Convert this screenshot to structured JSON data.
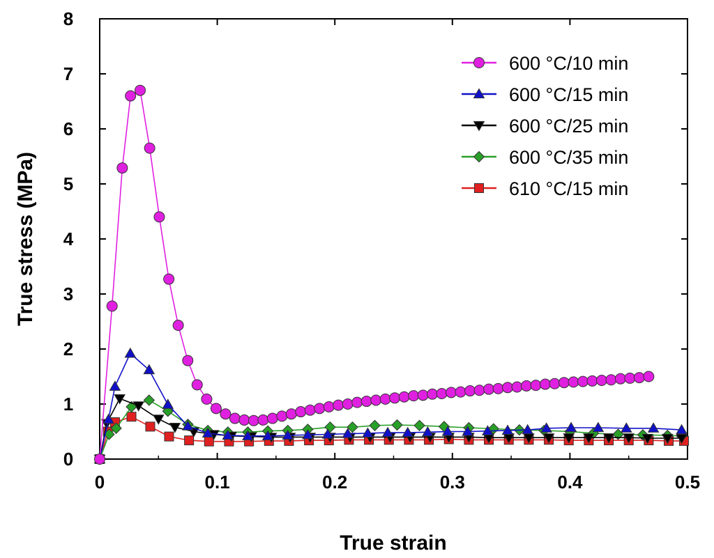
{
  "chart_data": {
    "type": "line",
    "title": "",
    "xlabel": "True strain",
    "ylabel": "True stress (MPa)",
    "xlim": [
      0,
      0.5
    ],
    "ylim": [
      0,
      8
    ],
    "x_ticks": [
      0,
      0.1,
      0.2,
      0.3,
      0.4,
      0.5
    ],
    "x_tick_labels": [
      "0",
      "0.1",
      "0.2",
      "0.3",
      "0.4",
      "0.5"
    ],
    "y_ticks": [
      0,
      1,
      2,
      3,
      4,
      5,
      6,
      7,
      8
    ],
    "y_tick_labels": [
      "0",
      "1",
      "2",
      "3",
      "4",
      "5",
      "6",
      "7",
      "8"
    ],
    "grid": false,
    "legend_position": "top-right",
    "series": [
      {
        "name": "600 °C/10 min",
        "color": "#e020e0",
        "marker": "circle",
        "points": [
          [
            0,
            0
          ],
          [
            0.0105,
            2.78
          ],
          [
            0.0192,
            5.29
          ],
          [
            0.0262,
            6.6
          ],
          [
            0.0344,
            6.7
          ],
          [
            0.0425,
            5.65
          ],
          [
            0.0507,
            4.4
          ],
          [
            0.0588,
            3.27
          ],
          [
            0.0668,
            2.43
          ],
          [
            0.0749,
            1.79
          ],
          [
            0.0829,
            1.35
          ],
          [
            0.091,
            1.09
          ],
          [
            0.099,
            0.92
          ],
          [
            0.107,
            0.82
          ],
          [
            0.115,
            0.74
          ],
          [
            0.123,
            0.71
          ],
          [
            0.131,
            0.7
          ],
          [
            0.139,
            0.71
          ],
          [
            0.147,
            0.74
          ],
          [
            0.155,
            0.78
          ],
          [
            0.163,
            0.82
          ],
          [
            0.171,
            0.86
          ],
          [
            0.179,
            0.89
          ],
          [
            0.187,
            0.92
          ],
          [
            0.195,
            0.95
          ],
          [
            0.203,
            0.98
          ],
          [
            0.211,
            1.0
          ],
          [
            0.219,
            1.03
          ],
          [
            0.227,
            1.05
          ],
          [
            0.235,
            1.07
          ],
          [
            0.243,
            1.09
          ],
          [
            0.251,
            1.11
          ],
          [
            0.259,
            1.13
          ],
          [
            0.267,
            1.15
          ],
          [
            0.275,
            1.16
          ],
          [
            0.283,
            1.18
          ],
          [
            0.291,
            1.19
          ],
          [
            0.299,
            1.21
          ],
          [
            0.307,
            1.22
          ],
          [
            0.315,
            1.24
          ],
          [
            0.323,
            1.25
          ],
          [
            0.331,
            1.27
          ],
          [
            0.339,
            1.28
          ],
          [
            0.347,
            1.3
          ],
          [
            0.355,
            1.31
          ],
          [
            0.363,
            1.33
          ],
          [
            0.371,
            1.34
          ],
          [
            0.379,
            1.36
          ],
          [
            0.387,
            1.37
          ],
          [
            0.395,
            1.39
          ],
          [
            0.403,
            1.4
          ],
          [
            0.411,
            1.41
          ],
          [
            0.419,
            1.42
          ],
          [
            0.427,
            1.43
          ],
          [
            0.435,
            1.44
          ],
          [
            0.443,
            1.46
          ],
          [
            0.451,
            1.47
          ],
          [
            0.459,
            1.48
          ],
          [
            0.467,
            1.5
          ]
        ]
      },
      {
        "name": "600 °C/15 min",
        "color": "#1010c8",
        "marker": "triangle-up",
        "points": [
          [
            0,
            0
          ],
          [
            0.0075,
            0.72
          ],
          [
            0.013,
            1.32
          ],
          [
            0.026,
            1.92
          ],
          [
            0.042,
            1.62
          ],
          [
            0.058,
            0.99
          ],
          [
            0.075,
            0.6
          ],
          [
            0.092,
            0.47
          ],
          [
            0.109,
            0.43
          ],
          [
            0.126,
            0.42
          ],
          [
            0.143,
            0.42
          ],
          [
            0.16,
            0.43
          ],
          [
            0.177,
            0.44
          ],
          [
            0.194,
            0.45
          ],
          [
            0.211,
            0.46
          ],
          [
            0.228,
            0.47
          ],
          [
            0.245,
            0.48
          ],
          [
            0.262,
            0.48
          ],
          [
            0.279,
            0.49
          ],
          [
            0.296,
            0.5
          ],
          [
            0.313,
            0.5
          ],
          [
            0.33,
            0.51
          ],
          [
            0.347,
            0.52
          ],
          [
            0.364,
            0.53
          ],
          [
            0.38,
            0.56
          ],
          [
            0.401,
            0.57
          ],
          [
            0.424,
            0.57
          ],
          [
            0.448,
            0.56
          ],
          [
            0.471,
            0.56
          ],
          [
            0.495,
            0.53
          ]
        ]
      },
      {
        "name": "600 °C/25 min",
        "color": "#000000",
        "marker": "triangle-down",
        "points": [
          [
            0,
            0
          ],
          [
            0.006,
            0.65
          ],
          [
            0.017,
            1.1
          ],
          [
            0.033,
            0.97
          ],
          [
            0.05,
            0.73
          ],
          [
            0.064,
            0.58
          ],
          [
            0.08,
            0.5
          ],
          [
            0.097,
            0.45
          ],
          [
            0.112,
            0.42
          ],
          [
            0.129,
            0.41
          ],
          [
            0.146,
            0.4
          ],
          [
            0.162,
            0.4
          ],
          [
            0.179,
            0.4
          ],
          [
            0.196,
            0.4
          ],
          [
            0.213,
            0.4
          ],
          [
            0.23,
            0.4
          ],
          [
            0.247,
            0.4
          ],
          [
            0.264,
            0.4
          ],
          [
            0.281,
            0.4
          ],
          [
            0.297,
            0.4
          ],
          [
            0.314,
            0.4
          ],
          [
            0.331,
            0.39
          ],
          [
            0.348,
            0.39
          ],
          [
            0.365,
            0.39
          ],
          [
            0.382,
            0.39
          ],
          [
            0.399,
            0.39
          ],
          [
            0.416,
            0.39
          ],
          [
            0.433,
            0.39
          ],
          [
            0.45,
            0.39
          ],
          [
            0.466,
            0.38
          ],
          [
            0.483,
            0.38
          ],
          [
            0.495,
            0.38
          ]
        ]
      },
      {
        "name": "600 °C/35 min",
        "color": "#28a028",
        "marker": "diamond",
        "points": [
          [
            0,
            0
          ],
          [
            0.008,
            0.45
          ],
          [
            0.014,
            0.56
          ],
          [
            0.027,
            0.95
          ],
          [
            0.042,
            1.07
          ],
          [
            0.058,
            0.87
          ],
          [
            0.075,
            0.63
          ],
          [
            0.092,
            0.52
          ],
          [
            0.109,
            0.49
          ],
          [
            0.126,
            0.49
          ],
          [
            0.143,
            0.51
          ],
          [
            0.16,
            0.52
          ],
          [
            0.177,
            0.54
          ],
          [
            0.196,
            0.58
          ],
          [
            0.215,
            0.58
          ],
          [
            0.234,
            0.61
          ],
          [
            0.253,
            0.62
          ],
          [
            0.272,
            0.61
          ],
          [
            0.293,
            0.59
          ],
          [
            0.314,
            0.57
          ],
          [
            0.335,
            0.55
          ],
          [
            0.357,
            0.53
          ],
          [
            0.378,
            0.52
          ],
          [
            0.4,
            0.5
          ],
          [
            0.42,
            0.47
          ],
          [
            0.441,
            0.45
          ],
          [
            0.462,
            0.44
          ],
          [
            0.483,
            0.43
          ],
          [
            0.495,
            0.42
          ]
        ]
      },
      {
        "name": "610 °C/15 min",
        "color": "#e02020",
        "marker": "square",
        "points": [
          [
            0,
            0
          ],
          [
            0.007,
            0.5
          ],
          [
            0.013,
            0.67
          ],
          [
            0.027,
            0.77
          ],
          [
            0.043,
            0.59
          ],
          [
            0.059,
            0.41
          ],
          [
            0.076,
            0.34
          ],
          [
            0.093,
            0.32
          ],
          [
            0.11,
            0.32
          ],
          [
            0.127,
            0.32
          ],
          [
            0.144,
            0.33
          ],
          [
            0.161,
            0.33
          ],
          [
            0.178,
            0.34
          ],
          [
            0.195,
            0.34
          ],
          [
            0.212,
            0.35
          ],
          [
            0.229,
            0.35
          ],
          [
            0.246,
            0.35
          ],
          [
            0.263,
            0.35
          ],
          [
            0.28,
            0.35
          ],
          [
            0.297,
            0.36
          ],
          [
            0.314,
            0.35
          ],
          [
            0.331,
            0.35
          ],
          [
            0.348,
            0.35
          ],
          [
            0.365,
            0.35
          ],
          [
            0.382,
            0.35
          ],
          [
            0.399,
            0.34
          ],
          [
            0.416,
            0.34
          ],
          [
            0.433,
            0.34
          ],
          [
            0.45,
            0.34
          ],
          [
            0.467,
            0.34
          ],
          [
            0.484,
            0.33
          ],
          [
            0.497,
            0.33
          ]
        ]
      }
    ]
  }
}
